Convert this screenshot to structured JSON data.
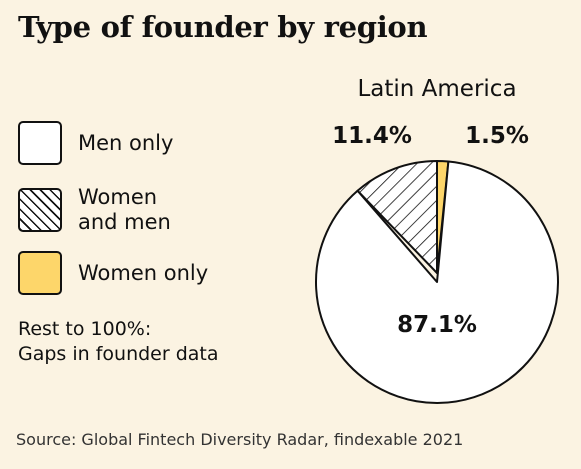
{
  "title": "Type of founder by region",
  "legend": {
    "men_only": "Men only",
    "women_and_men": "Women\nand men",
    "women_only": "Women only"
  },
  "note": {
    "line1": "Rest to 100%:",
    "line2": "Gaps in founder data"
  },
  "source": "Source: Global Fintech Diversity Radar, findexable 2021",
  "colors": {
    "background": "#fbf3e2",
    "men_only": "#ffffff",
    "women_and_men_hatch": "#111111",
    "women_only": "#fdd66a",
    "outline": "#111111"
  },
  "chart_data": {
    "type": "pie",
    "title": "Latin America",
    "start": "top",
    "slices": [
      {
        "name": "Women only",
        "value": 1.5,
        "label": "1.5%",
        "fill": "women"
      },
      {
        "name": "Men only",
        "value": 87.1,
        "label": "87.1%",
        "fill": "men"
      },
      {
        "name": "Women and men",
        "value": 11.4,
        "label": "11.4%",
        "fill": "hatch"
      }
    ]
  }
}
